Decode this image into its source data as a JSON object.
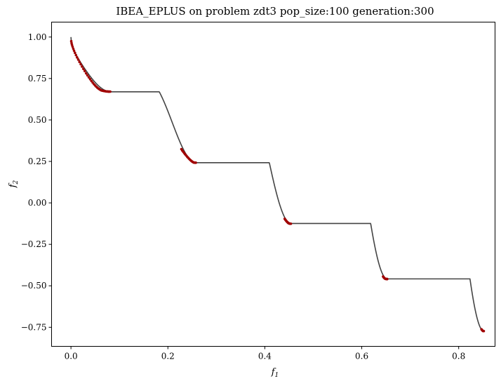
{
  "chart_data": {
    "type": "scatter",
    "title": "IBEA_EPLUS on problem zdt3 pop_size:100 generation:300",
    "xlabel": "f",
    "xlabel_sub": "1",
    "ylabel": "f",
    "ylabel_sub": "2",
    "xlim": [
      -0.04,
      0.875
    ],
    "ylim": [
      -0.865,
      1.09
    ],
    "xticks": [
      0.0,
      0.2,
      0.4,
      0.6,
      0.8
    ],
    "xtick_labels": [
      "0.0",
      "0.2",
      "0.4",
      "0.6",
      "0.8"
    ],
    "yticks": [
      -0.75,
      -0.5,
      -0.25,
      0.0,
      0.25,
      0.5,
      0.75,
      1.0
    ],
    "ytick_labels": [
      "−0.75",
      "−0.50",
      "−0.25",
      "0.00",
      "0.25",
      "0.50",
      "0.75",
      "1.00"
    ],
    "grid": false,
    "reference_curve_color": "#444444",
    "points_color": "#a00000",
    "segments": [
      [
        0.0,
        0.0830015349
      ],
      [
        0.182228728,
        0.2577623634
      ],
      [
        0.4093136748,
        0.4538821041
      ],
      [
        0.6183967944,
        0.6525117038
      ],
      [
        0.8233317983,
        0.8518328654
      ]
    ],
    "points": [
      [
        0.0006,
        0.975
      ],
      [
        0.0012,
        0.964
      ],
      [
        0.002,
        0.954
      ],
      [
        0.0032,
        0.943
      ],
      [
        0.0047,
        0.93
      ],
      [
        0.0063,
        0.918
      ],
      [
        0.0082,
        0.905
      ],
      [
        0.0103,
        0.891
      ],
      [
        0.0126,
        0.877
      ],
      [
        0.015,
        0.864
      ],
      [
        0.0175,
        0.85
      ],
      [
        0.0201,
        0.836
      ],
      [
        0.0228,
        0.822
      ],
      [
        0.0256,
        0.808
      ],
      [
        0.0284,
        0.795
      ],
      [
        0.0312,
        0.781
      ],
      [
        0.034,
        0.769
      ],
      [
        0.0368,
        0.757
      ],
      [
        0.0396,
        0.746
      ],
      [
        0.0423,
        0.735
      ],
      [
        0.0449,
        0.725
      ],
      [
        0.0474,
        0.716
      ],
      [
        0.0498,
        0.708
      ],
      [
        0.0521,
        0.701
      ],
      [
        0.0543,
        0.695
      ],
      [
        0.0564,
        0.69
      ],
      [
        0.0584,
        0.686
      ],
      [
        0.0603,
        0.682
      ],
      [
        0.0622,
        0.679
      ],
      [
        0.0641,
        0.677
      ],
      [
        0.0659,
        0.676
      ],
      [
        0.0677,
        0.675
      ],
      [
        0.0695,
        0.674
      ],
      [
        0.0713,
        0.673
      ],
      [
        0.0731,
        0.672
      ],
      [
        0.0748,
        0.672
      ],
      [
        0.0765,
        0.6713
      ],
      [
        0.078,
        0.6711
      ],
      [
        0.0795,
        0.671
      ],
      [
        0.081,
        0.671
      ],
      [
        0.2278,
        0.3239
      ],
      [
        0.2297,
        0.3158
      ],
      [
        0.2317,
        0.308
      ],
      [
        0.2336,
        0.3004
      ],
      [
        0.2356,
        0.293
      ],
      [
        0.2376,
        0.286
      ],
      [
        0.2396,
        0.2793
      ],
      [
        0.2415,
        0.2729
      ],
      [
        0.2434,
        0.267
      ],
      [
        0.2452,
        0.2616
      ],
      [
        0.247,
        0.2567
      ],
      [
        0.2487,
        0.2523
      ],
      [
        0.2503,
        0.2487
      ],
      [
        0.2518,
        0.2458
      ],
      [
        0.2532,
        0.2438
      ],
      [
        0.2545,
        0.2428
      ],
      [
        0.2557,
        0.2424
      ],
      [
        0.2567,
        0.2422
      ],
      [
        0.2576,
        0.2422
      ],
      [
        0.441,
        -0.0959
      ],
      [
        0.442,
        -0.1
      ],
      [
        0.443,
        -0.104
      ],
      [
        0.444,
        -0.1078
      ],
      [
        0.445,
        -0.1113
      ],
      [
        0.446,
        -0.1146
      ],
      [
        0.447,
        -0.1175
      ],
      [
        0.448,
        -0.1201
      ],
      [
        0.449,
        -0.1222
      ],
      [
        0.45,
        -0.1238
      ],
      [
        0.451,
        -0.1249
      ],
      [
        0.452,
        -0.1254
      ],
      [
        0.453,
        -0.1256
      ],
      [
        0.4538,
        -0.1256
      ],
      [
        0.644,
        -0.444
      ],
      [
        0.645,
        -0.448
      ],
      [
        0.646,
        -0.4515
      ],
      [
        0.647,
        -0.4545
      ],
      [
        0.648,
        -0.4567
      ],
      [
        0.649,
        -0.4582
      ],
      [
        0.65,
        -0.4588
      ],
      [
        0.651,
        -0.459
      ],
      [
        0.652,
        -0.4591
      ],
      [
        0.6525,
        -0.4591
      ],
      [
        0.847,
        -0.762
      ],
      [
        0.848,
        -0.766
      ],
      [
        0.849,
        -0.7695
      ],
      [
        0.85,
        -0.7718
      ],
      [
        0.851,
        -0.7728
      ],
      [
        0.8518,
        -0.773
      ]
    ]
  }
}
